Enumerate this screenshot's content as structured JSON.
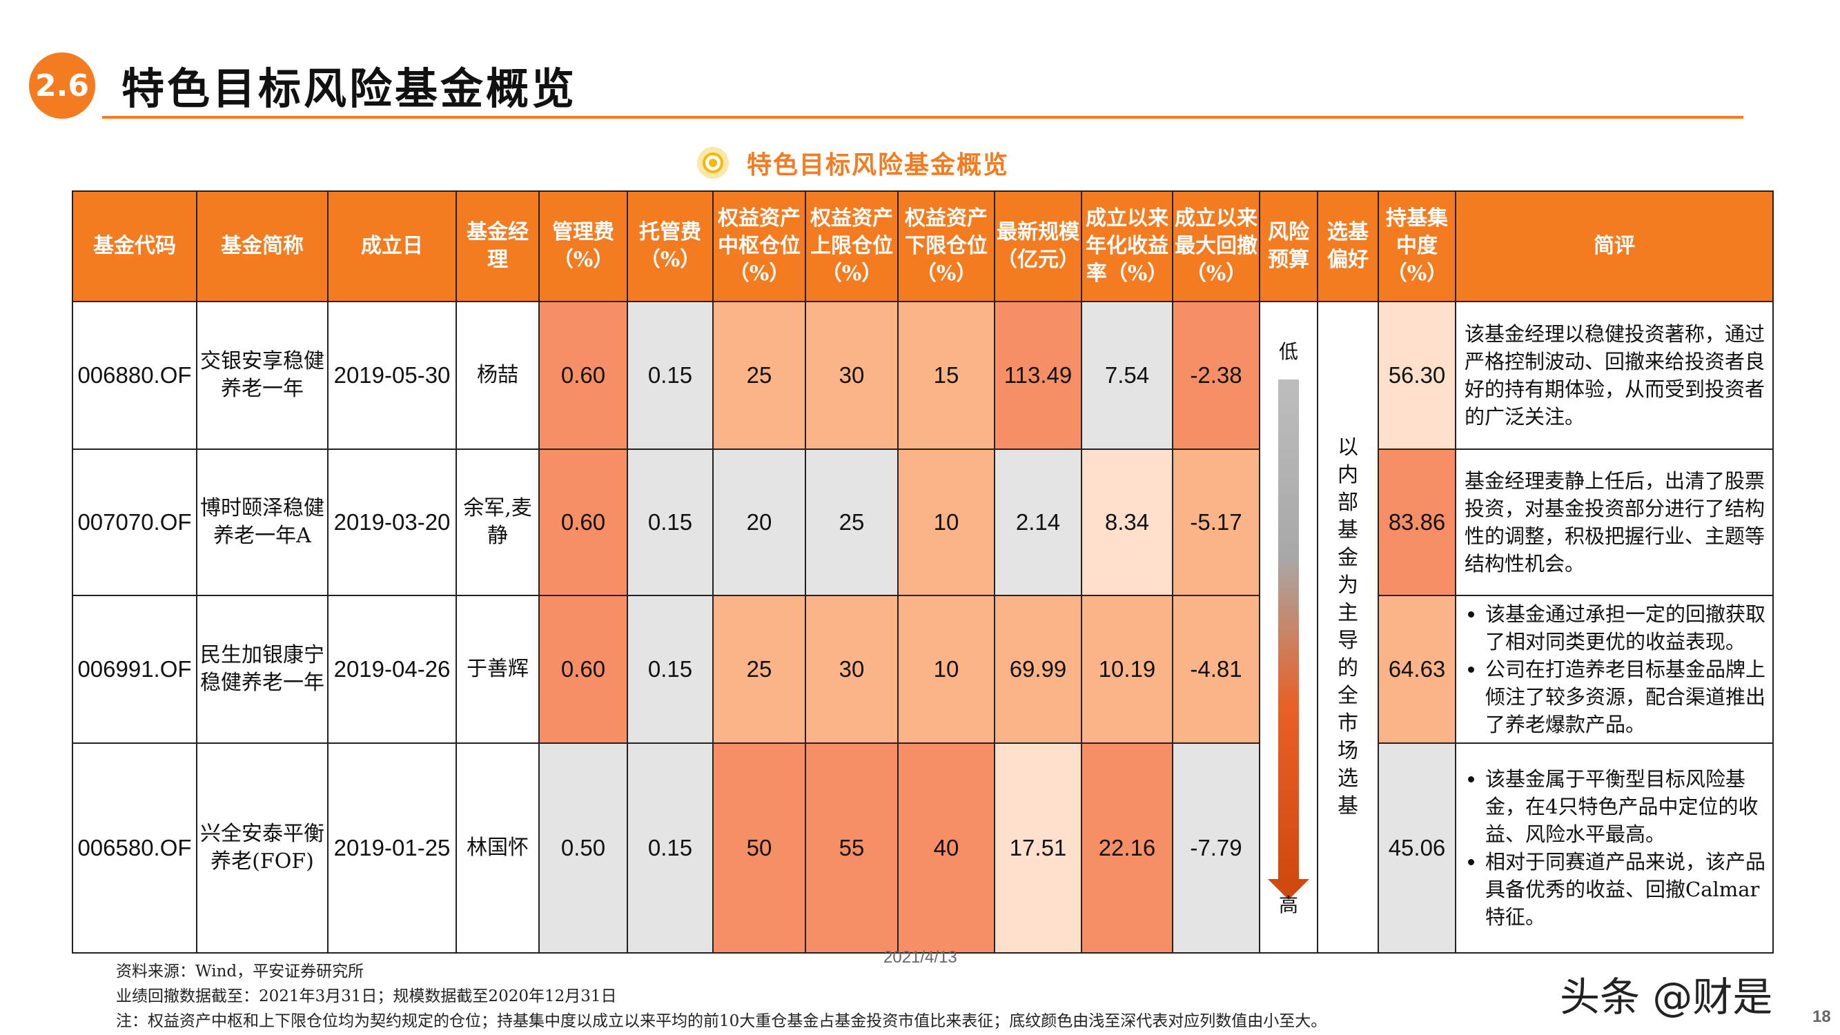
{
  "header": {
    "section_number": "2.6",
    "title": "特色目标风险基金概览"
  },
  "table_caption": "特色目标风险基金概览",
  "colors": {
    "accent": "#f47b20",
    "shade_light": "#fde0cb",
    "shade_mid": "#fbb488",
    "shade_dark": "#f68f65",
    "shade_grey": "#e4e4e4"
  },
  "table": {
    "headers": {
      "code": "基金代码",
      "name": "基金简称",
      "inception": "成立日",
      "manager": "基金经理",
      "mgmt_fee": "管理费（%）",
      "custody_fee": "托管费（%）",
      "equity_center": "权益资产中枢仓位（%）",
      "equity_upper": "权益资产上限仓位（%）",
      "equity_lower": "权益资产下限仓位（%）",
      "aum": "最新规模（亿元）",
      "annual_return": "成立以来年化收益率（%）",
      "max_drawdown": "成立以来最大回撤（%）",
      "risk_budget": "风险预算",
      "selection_pref": "选基偏好",
      "concentration": "持基集中度（%）",
      "comment": "简评"
    },
    "rows": [
      {
        "code": "006880.OF",
        "name": "交银安享稳健养老一年",
        "inception": "2019-05-30",
        "manager": "杨喆",
        "mgmt_fee": "0.60",
        "custody_fee": "0.15",
        "equity_center": "25",
        "equity_upper": "30",
        "equity_lower": "15",
        "aum": "113.49",
        "annual_return": "7.54",
        "max_drawdown": "-2.38"
      },
      {
        "code": "007070.OF",
        "name": "博时颐泽稳健养老一年A",
        "inception": "2019-03-20",
        "manager": "余军,麦静",
        "mgmt_fee": "0.60",
        "custody_fee": "0.15",
        "equity_center": "20",
        "equity_upper": "25",
        "equity_lower": "10",
        "aum": "2.14",
        "annual_return": "8.34",
        "max_drawdown": "-5.17"
      },
      {
        "code": "006991.OF",
        "name": "民生加银康宁稳健养老一年",
        "inception": "2019-04-26",
        "manager": "于善辉",
        "mgmt_fee": "0.60",
        "custody_fee": "0.15",
        "equity_center": "25",
        "equity_upper": "30",
        "equity_lower": "10",
        "aum": "69.99",
        "annual_return": "10.19",
        "max_drawdown": "-4.81"
      },
      {
        "code": "006580.OF",
        "name": "兴全安泰平衡养老(FOF)",
        "inception": "2019-01-25",
        "manager": "林国怀",
        "mgmt_fee": "0.50",
        "custody_fee": "0.15",
        "equity_center": "50",
        "equity_upper": "55",
        "equity_lower": "40",
        "aum": "17.51",
        "annual_return": "22.16",
        "max_drawdown": "-7.79"
      }
    ],
    "risk_low_label": "低",
    "risk_high_label": "高",
    "selection_pref_text": "以内部基金为主导的全市场选基",
    "concentration": [
      "56.30",
      "83.86",
      "64.63",
      "45.06"
    ],
    "comments": {
      "c1": "该基金经理以稳健投资著称，通过严格控制波动、回撤来给投资者良好的持有期体验，从而受到投资者的广泛关注。",
      "c2": "基金经理麦静上任后，出清了股票投资，对基金投资部分进行了结构性的调整，积极把握行业、主题等结构性机会。",
      "c3_a": "该基金通过承担一定的回撤获取了相对同类更优的收益表现。",
      "c3_b": "公司在打造养老目标基金品牌上倾注了较多资源，配合渠道推出了养老爆款产品。",
      "c4_a": "该基金属于平衡型目标风险基金，在4只特色产品中定位的收益、风险水平最高。",
      "c4_b": "相对于同赛道产品来说，该产品具备优秀的收益、回撤Calmar特征。"
    }
  },
  "footer": {
    "date": "2021/4/13",
    "source": "资料来源：Wind，平安证券研究所",
    "data_cutoff": "业绩回撤数据截至：2021年3月31日；规模数据截至2020年12月31日",
    "note": "注：权益资产中枢和上下限仓位均为契约规定的仓位；持基集中度以成立以来平均的前10大重仓基金占基金投资市值比来表征；底纹颜色由浅至深代表对应列数值由小至大。",
    "watermark": "头条 @财是",
    "page_number": "18"
  }
}
